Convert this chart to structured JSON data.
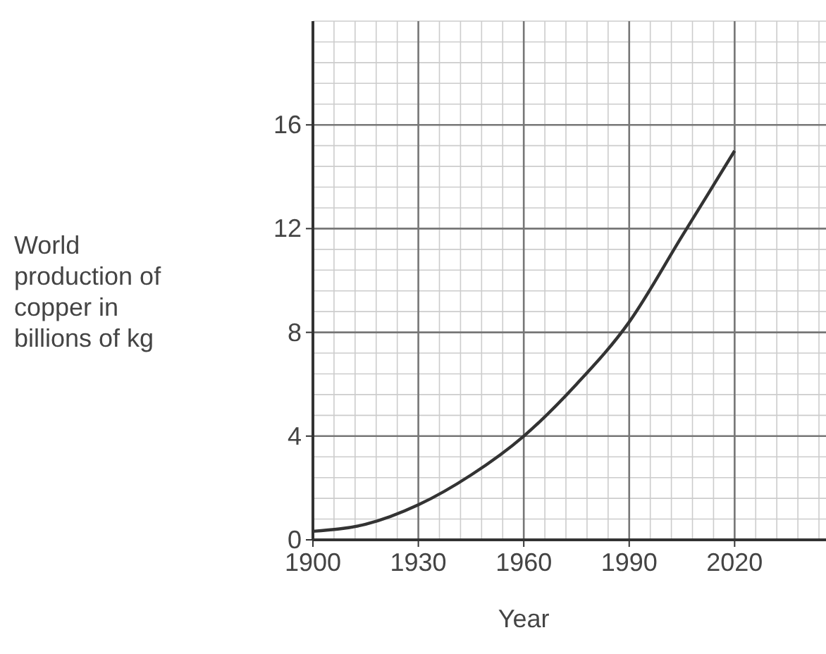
{
  "chart_data": {
    "type": "line",
    "xlabel": "Year",
    "ylabel": "World production of copper in billions of kg",
    "x": [
      1900,
      1915,
      1930,
      1945,
      1960,
      1975,
      1990,
      2005,
      2020
    ],
    "series": [
      {
        "color": "#333333",
        "values": [
          0.33,
          0.6,
          1.35,
          2.5,
          4.0,
          6.0,
          8.4,
          11.7,
          15.0
        ]
      }
    ],
    "xlim": [
      1900,
      2046
    ],
    "xticks": [
      1900,
      1930,
      1960,
      1990,
      2020
    ],
    "ylim": [
      0,
      20
    ],
    "yticks": [
      0,
      4,
      8,
      12,
      16
    ],
    "grid": true,
    "marker": "none",
    "line_style": "solid"
  }
}
